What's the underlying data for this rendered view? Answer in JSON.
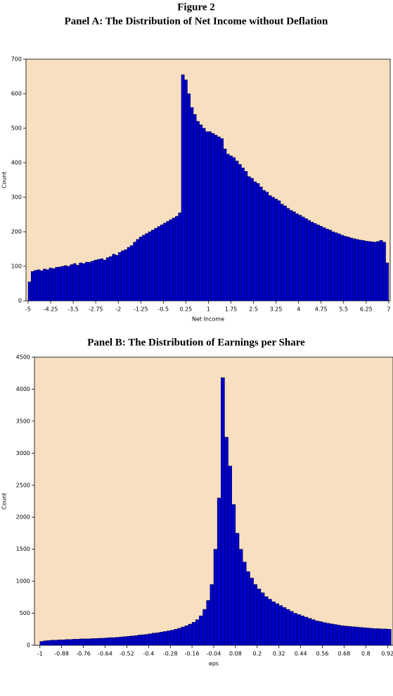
{
  "figure_title": "Figure 2",
  "chart_data": [
    {
      "type": "histogram",
      "title": "Panel A: The Distribution of Net Income without Deflation",
      "x_label": "Net Income",
      "y_label": "Count",
      "bins": [
        -5,
        -4.9,
        -4.8,
        -4.7,
        -4.6,
        -4.5,
        -4.4,
        -4.3,
        -4.2,
        -4.1,
        -4,
        -3.9,
        -3.8,
        -3.7,
        -3.6,
        -3.5,
        -3.4,
        -3.3,
        -3.2,
        -3.1,
        -3,
        -2.9,
        -2.8,
        -2.7,
        -2.6,
        -2.5,
        -2.4,
        -2.3,
        -2.2,
        -2.1,
        -2,
        -1.9,
        -1.8,
        -1.7,
        -1.6,
        -1.5,
        -1.4,
        -1.3,
        -1.2,
        -1.1,
        -1,
        -0.9,
        -0.8,
        -0.7,
        -0.6,
        -0.5,
        -0.4,
        -0.3,
        -0.2,
        -0.1,
        0,
        0.1,
        0.2,
        0.3,
        0.4,
        0.5,
        0.6,
        0.7,
        0.8,
        0.9,
        1,
        1.1,
        1.2,
        1.3,
        1.4,
        1.5,
        1.6,
        1.7,
        1.8,
        1.9,
        2,
        2.1,
        2.2,
        2.3,
        2.4,
        2.5,
        2.6,
        2.7,
        2.8,
        2.9,
        3,
        3.1,
        3.2,
        3.3,
        3.4,
        3.5,
        3.6,
        3.7,
        3.8,
        3.9,
        4,
        4.1,
        4.2,
        4.3,
        4.4,
        4.5,
        4.6,
        4.7,
        4.8,
        4.9,
        5,
        5.1,
        5.2,
        5.3,
        5.4,
        5.5,
        5.6,
        5.7,
        5.8,
        5.9,
        6,
        6.1,
        6.2,
        6.3,
        6.4,
        6.5,
        6.6,
        6.7,
        6.8,
        6.9,
        7
      ],
      "counts": [
        55,
        85,
        88,
        90,
        87,
        92,
        90,
        95,
        93,
        97,
        98,
        100,
        102,
        100,
        105,
        108,
        103,
        110,
        108,
        112,
        112,
        115,
        118,
        120,
        122,
        118,
        125,
        128,
        135,
        132,
        140,
        145,
        148,
        155,
        160,
        170,
        178,
        185,
        190,
        195,
        200,
        205,
        210,
        215,
        220,
        225,
        230,
        235,
        240,
        245,
        255,
        655,
        640,
        600,
        560,
        540,
        520,
        510,
        500,
        490,
        490,
        485,
        480,
        475,
        470,
        440,
        425,
        420,
        415,
        405,
        395,
        385,
        375,
        360,
        355,
        345,
        340,
        330,
        320,
        315,
        305,
        300,
        295,
        290,
        280,
        275,
        268,
        262,
        258,
        252,
        248,
        243,
        238,
        233,
        228,
        224,
        220,
        216,
        212,
        208,
        205,
        200,
        197,
        194,
        190,
        187,
        185,
        182,
        180,
        178,
        176,
        175,
        173,
        172,
        171,
        170,
        172,
        175,
        170,
        110
      ],
      "color": "#0000c8",
      "xlim": [
        -5.07,
        7.05
      ],
      "xticks": [
        -5,
        -4.25,
        -3.5,
        -2.75,
        -2,
        -1.25,
        -0.5,
        0.25,
        1,
        1.75,
        2.5,
        3.25,
        4,
        4.75,
        5.5,
        6.25,
        7
      ],
      "ylim": [
        0,
        700
      ],
      "yticks": [
        0,
        100,
        200,
        300,
        400,
        500,
        600,
        700
      ]
    },
    {
      "type": "histogram",
      "title": "Panel B: The Distribution of Earnings per Share",
      "x_label": "eps",
      "y_label": "Count",
      "bins": [
        -1,
        -0.98,
        -0.96,
        -0.94,
        -0.92,
        -0.9,
        -0.88,
        -0.86,
        -0.84,
        -0.82,
        -0.8,
        -0.78,
        -0.76,
        -0.74,
        -0.72,
        -0.7,
        -0.68,
        -0.66,
        -0.64,
        -0.62,
        -0.6,
        -0.58,
        -0.56,
        -0.54,
        -0.52,
        -0.5,
        -0.48,
        -0.46,
        -0.44,
        -0.42,
        -0.4,
        -0.38,
        -0.36,
        -0.34,
        -0.32,
        -0.3,
        -0.28,
        -0.26,
        -0.24,
        -0.22,
        -0.2,
        -0.18,
        -0.16,
        -0.14,
        -0.12,
        -0.1,
        -0.08,
        -0.06,
        -0.04,
        -0.02,
        0,
        0.02,
        0.04,
        0.06,
        0.08,
        0.1,
        0.12,
        0.14,
        0.16,
        0.18,
        0.2,
        0.22,
        0.24,
        0.26,
        0.28,
        0.3,
        0.32,
        0.34,
        0.36,
        0.38,
        0.4,
        0.42,
        0.44,
        0.46,
        0.48,
        0.5,
        0.52,
        0.54,
        0.56,
        0.58,
        0.6,
        0.62,
        0.64,
        0.66,
        0.68,
        0.7,
        0.72,
        0.74,
        0.76,
        0.78,
        0.8,
        0.82,
        0.84,
        0.86,
        0.88,
        0.9,
        0.92,
        0.94
      ],
      "counts": [
        60,
        70,
        75,
        80,
        80,
        85,
        85,
        90,
        90,
        95,
        95,
        100,
        100,
        100,
        105,
        105,
        110,
        110,
        115,
        120,
        120,
        125,
        130,
        135,
        140,
        145,
        150,
        160,
        165,
        170,
        180,
        190,
        195,
        205,
        215,
        225,
        235,
        250,
        265,
        285,
        305,
        330,
        360,
        400,
        460,
        560,
        700,
        950,
        1500,
        2300,
        4180,
        3250,
        2800,
        2200,
        1750,
        1500,
        1300,
        1150,
        1050,
        950,
        880,
        820,
        760,
        720,
        680,
        650,
        620,
        590,
        560,
        530,
        500,
        480,
        460,
        440,
        420,
        400,
        380,
        370,
        355,
        345,
        335,
        325,
        315,
        305,
        300,
        295,
        290,
        285,
        280,
        275,
        270,
        265,
        260,
        260,
        255,
        255,
        250
      ],
      "color": "#0000c8",
      "xlim": [
        -1.03,
        0.95
      ],
      "xticks": [
        -1,
        -0.88,
        -0.76,
        -0.64,
        -0.52,
        -0.4,
        -0.28,
        -0.16,
        -0.04,
        0.08,
        0.2,
        0.32,
        0.44,
        0.56,
        0.68,
        0.8,
        0.92
      ],
      "ylim": [
        0,
        4500
      ],
      "yticks": [
        0,
        500,
        1000,
        1500,
        2000,
        2500,
        3000,
        3500,
        4000,
        4500
      ]
    }
  ]
}
